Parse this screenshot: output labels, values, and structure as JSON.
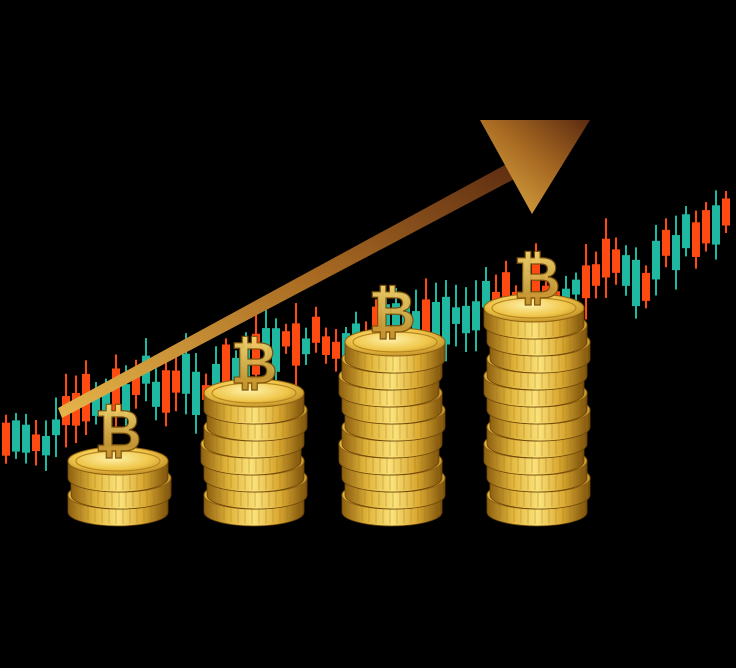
{
  "scene": {
    "background": "#000000",
    "colors": {
      "candle_up": "#1fb8a0",
      "candle_down": "#ff4a12",
      "gold_light": "#fbe27a",
      "gold_mid": "#e0b43a",
      "gold_dark": "#8e5f10",
      "arrow_start": "#e6b54a",
      "arrow_end": "#5a2a10"
    },
    "icons": [
      "bitcoin-symbol-icon",
      "trend-arrow-icon",
      "candlestick-icon",
      "coin-icon"
    ],
    "coin_stacks": [
      {
        "name": "coin-stack-1",
        "coin_count": 3
      },
      {
        "name": "coin-stack-2",
        "coin_count": 7
      },
      {
        "name": "coin-stack-3",
        "coin_count": 10
      },
      {
        "name": "coin-stack-4",
        "coin_count": 12
      }
    ],
    "trend_direction": "up"
  }
}
